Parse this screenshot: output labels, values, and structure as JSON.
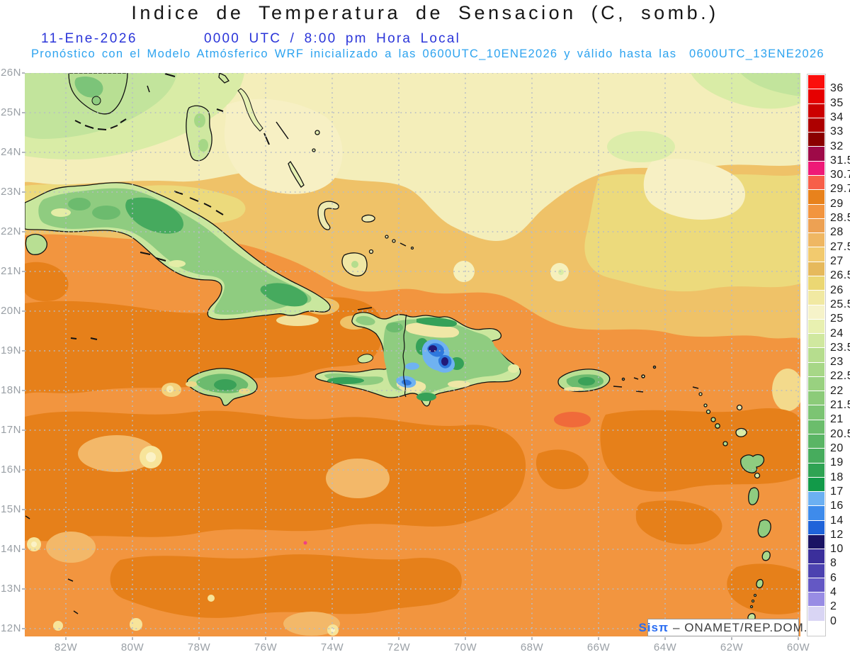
{
  "header": {
    "title": "Indice de Temperatura de Sensacion (C, somb.)",
    "date": "11-Ene-2026",
    "time_label": "0000 UTC / 8:00 pm Hora Local",
    "forecast_note": "Pronóstico con el Modelo Atmósferico WRF inicializado a las 0600UTC_10ENE2026 y válido hasta las  0600UTC_13ENE2026"
  },
  "map": {
    "lat_ticks": [
      "26N",
      "25N",
      "24N",
      "23N",
      "22N",
      "21N",
      "20N",
      "19N",
      "18N",
      "17N",
      "16N",
      "15N",
      "14N",
      "13N",
      "12N"
    ],
    "lon_ticks": [
      "82W",
      "80W",
      "78W",
      "76W",
      "74W",
      "72W",
      "70W",
      "68W",
      "66W",
      "64W",
      "62W",
      "60W"
    ]
  },
  "legend": {
    "values": [
      "36",
      "35",
      "34",
      "33",
      "32",
      "31.5",
      "30.7",
      "29.7",
      "29",
      "28.5",
      "28",
      "27.5",
      "27",
      "26.5",
      "26",
      "25.5",
      "25",
      "24",
      "23.5",
      "23",
      "22.5",
      "22",
      "21.5",
      "21",
      "20.5",
      "20",
      "19",
      "18",
      "17",
      "16",
      "14",
      "12",
      "10",
      "8",
      "6",
      "4",
      "2",
      "0"
    ],
    "colors": [
      "#fb0f0c",
      "#e60000",
      "#cc0000",
      "#ad0000",
      "#8b0000",
      "#9e0a48",
      "#ee1a77",
      "#f75f49",
      "#e8821c",
      "#f2953f",
      "#eda153",
      "#efb763",
      "#f2ca6e",
      "#e6b95c",
      "#ebd773",
      "#f1e9a2",
      "#f6f3c9",
      "#e8f0b0",
      "#d0e89f",
      "#b6dd8e",
      "#a7d787",
      "#99d180",
      "#8ccb79",
      "#7cc473",
      "#6bbd6c",
      "#5ab565",
      "#47ac5d",
      "#2fa353",
      "#129a49",
      "#6cb0f2",
      "#3e8beb",
      "#1f63d9",
      "#1b1464",
      "#3b2f9b",
      "#4c42b0",
      "#6458c4",
      "#988ce4",
      "#d9d5f4",
      "#ffffff"
    ]
  },
  "attribution": {
    "brand": "Sisπ",
    "suffix": "– ONAMET/REP.DOM."
  },
  "colors": {
    "title": "#161616",
    "date_line": "#2b35d9",
    "forecast_line": "#2da3ef",
    "axis_labels": "#9aa0a6",
    "sea_base": "#f2953f",
    "sea_hot": "#e6801a",
    "sea_sandy": "#efc268",
    "sea_pale": "#f4eeba",
    "land_green": "#8fcc80",
    "mountain_blue": "#2e78dd"
  }
}
